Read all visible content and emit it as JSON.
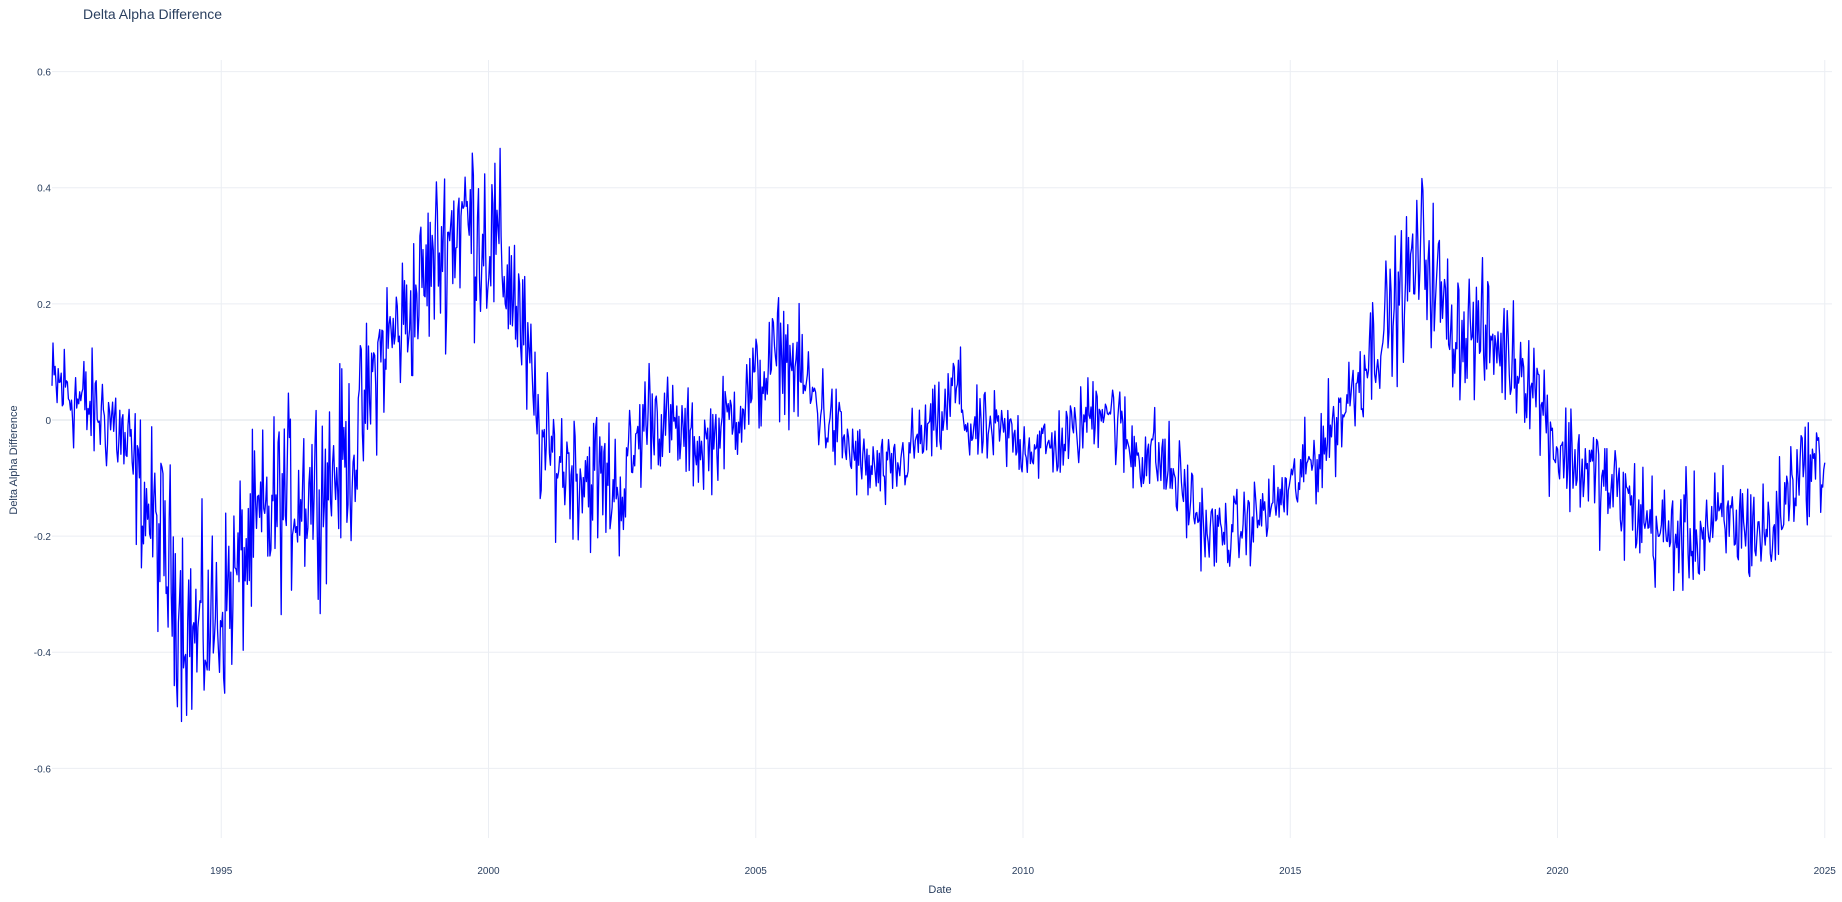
{
  "chart_data": {
    "type": "line",
    "title": "Delta Alpha Difference",
    "xlabel": "Date",
    "ylabel": "Delta Alpha Difference",
    "xlim": [
      "1991-11-01",
      "2025-02-20"
    ],
    "ylim": [
      -0.72,
      0.62
    ],
    "x_ticks": [
      "1995",
      "2000",
      "2005",
      "2010",
      "2015",
      "2020",
      "2025"
    ],
    "y_ticks": [
      "0.6",
      "0.4",
      "0.2",
      "0",
      "-0.2",
      "-0.4",
      "-0.6"
    ],
    "grid": true,
    "series": [
      {
        "color": "#0000ff",
        "x": [
          "1991-11",
          "1992-01",
          "1992-07",
          "1993-01",
          "1993-07",
          "1994-01",
          "1994-07",
          "1995-01",
          "1995-07",
          "1996-01",
          "1996-07",
          "1997-01",
          "1997-07",
          "1998-01",
          "1998-07",
          "1999-01",
          "1999-07",
          "2000-01",
          "2000-07",
          "2001-01",
          "2001-07",
          "2002-01",
          "2002-07",
          "2003-01",
          "2003-07",
          "2004-01",
          "2004-07",
          "2005-01",
          "2005-07",
          "2006-01",
          "2006-07",
          "2007-01",
          "2007-07",
          "2008-01",
          "2008-07",
          "2008-10",
          "2009-01",
          "2009-07",
          "2010-01",
          "2010-07",
          "2011-01",
          "2011-07",
          "2012-01",
          "2012-07",
          "2013-01",
          "2013-07",
          "2014-01",
          "2014-07",
          "2015-01",
          "2015-07",
          "2016-01",
          "2016-07",
          "2017-01",
          "2017-07",
          "2018-01",
          "2018-07",
          "2019-01",
          "2019-07",
          "2020-01",
          "2020-07",
          "2021-01",
          "2021-07",
          "2022-01",
          "2022-07",
          "2023-01",
          "2023-07",
          "2024-01",
          "2024-07",
          "2025-01"
        ],
        "values": [
          0.05,
          0.06,
          0.02,
          0.0,
          -0.12,
          -0.25,
          -0.38,
          -0.33,
          -0.22,
          -0.15,
          -0.12,
          -0.1,
          -0.05,
          0.12,
          0.18,
          0.28,
          0.35,
          0.32,
          0.22,
          -0.05,
          -0.08,
          -0.1,
          -0.12,
          0.02,
          -0.02,
          -0.05,
          0.0,
          0.06,
          0.12,
          0.05,
          -0.02,
          -0.08,
          -0.1,
          -0.04,
          0.0,
          0.06,
          -0.02,
          -0.02,
          -0.04,
          -0.05,
          -0.02,
          0.04,
          -0.05,
          -0.06,
          -0.12,
          -0.2,
          -0.19,
          -0.16,
          -0.12,
          -0.06,
          0.02,
          0.12,
          0.2,
          0.3,
          0.16,
          0.15,
          0.12,
          0.08,
          -0.05,
          -0.08,
          -0.12,
          -0.16,
          -0.2,
          -0.2,
          -0.18,
          -0.18,
          -0.2,
          -0.08,
          -0.08
        ],
        "volatility": [
          0.06,
          0.06,
          0.06,
          0.06,
          0.08,
          0.11,
          0.11,
          0.1,
          0.1,
          0.1,
          0.1,
          0.1,
          0.09,
          0.08,
          0.08,
          0.09,
          0.1,
          0.11,
          0.09,
          0.07,
          0.07,
          0.08,
          0.07,
          0.06,
          0.05,
          0.05,
          0.05,
          0.06,
          0.06,
          0.06,
          0.05,
          0.04,
          0.04,
          0.04,
          0.04,
          0.06,
          0.04,
          0.04,
          0.04,
          0.04,
          0.04,
          0.05,
          0.05,
          0.05,
          0.05,
          0.04,
          0.04,
          0.04,
          0.04,
          0.05,
          0.05,
          0.06,
          0.07,
          0.08,
          0.07,
          0.07,
          0.06,
          0.06,
          0.06,
          0.06,
          0.06,
          0.06,
          0.06,
          0.06,
          0.06,
          0.06,
          0.06,
          0.05,
          0.05
        ]
      }
    ]
  }
}
